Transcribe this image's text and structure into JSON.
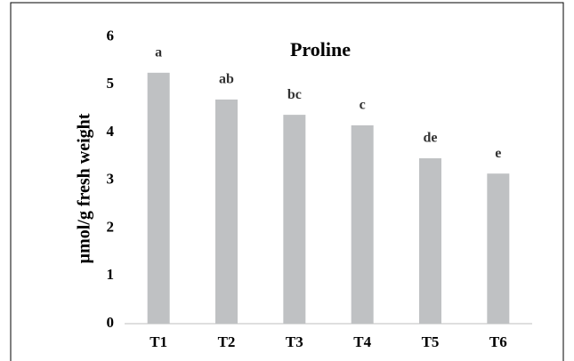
{
  "chart_data": {
    "type": "bar",
    "title": "Proline",
    "ylabel": "µmol/g fresh weight",
    "categories": [
      "T1",
      "T2",
      "T3",
      "T4",
      "T5",
      "T6"
    ],
    "values": [
      5.25,
      4.69,
      4.37,
      4.15,
      3.46,
      3.14
    ],
    "annotations": [
      "a",
      "ab",
      "bc",
      "c",
      "de",
      "e"
    ],
    "color": "#bfc1c3",
    "ylim": [
      0,
      6
    ],
    "yticks": [
      0,
      1,
      2,
      3,
      4,
      5,
      6
    ]
  }
}
